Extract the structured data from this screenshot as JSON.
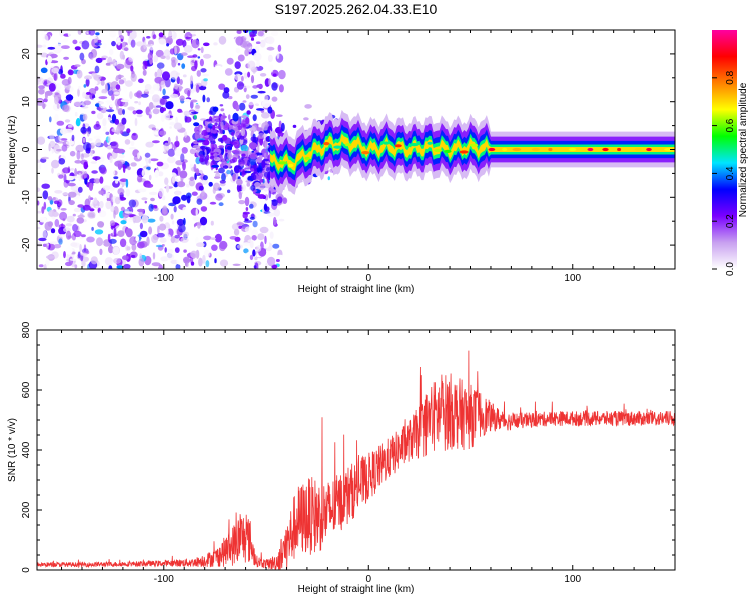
{
  "title": "S197.2025.262.04.33.E10",
  "chart_data": [
    {
      "type": "heatmap",
      "title": "S197.2025.262.04.33.E10",
      "xlabel": "Height of straight line (km)",
      "ylabel": "Frequency (Hz)",
      "xlim": [
        -162,
        150
      ],
      "ylim": [
        -25,
        25
      ],
      "xticks": [
        -100,
        0,
        100
      ],
      "yticks": [
        -20,
        -10,
        0,
        10,
        20
      ],
      "description": "Doppler spectrogram: noisy speckle below about -40 km, converging to a narrow tone near 0 Hz above about 60 km",
      "colorbar": {
        "label": "Normalized spectral amplitude",
        "range": [
          0,
          1
        ],
        "ticks": [
          0.0,
          0.2,
          0.4,
          0.6,
          0.8
        ],
        "colors": [
          "#ffffff",
          "#c8a0f0",
          "#7a00ff",
          "#0000ff",
          "#00e5ff",
          "#00ff00",
          "#ffff00",
          "#ff8000",
          "#ff0000",
          "#ff00a0"
        ]
      },
      "tone_center": [
        {
          "x": -45,
          "y": -2.5
        },
        {
          "x": -38,
          "y": -3
        },
        {
          "x": -30,
          "y": -1
        },
        {
          "x": -20,
          "y": 1
        },
        {
          "x": -10,
          "y": 1.5
        },
        {
          "x": 0,
          "y": 0
        },
        {
          "x": 10,
          "y": 0.5
        },
        {
          "x": 20,
          "y": 0
        },
        {
          "x": 30,
          "y": 0.5
        },
        {
          "x": 40,
          "y": 0
        },
        {
          "x": 50,
          "y": 0.5
        },
        {
          "x": 60,
          "y": 0
        },
        {
          "x": 150,
          "y": 0
        }
      ]
    },
    {
      "type": "line",
      "xlabel": "Height of straight line (km)",
      "ylabel": "SNR (10 * v/v)",
      "xlim": [
        -162,
        150
      ],
      "ylim": [
        0,
        800
      ],
      "xticks": [
        -100,
        0,
        100
      ],
      "yticks": [
        0,
        200,
        400,
        600,
        800
      ],
      "series": [
        {
          "name": "SNR",
          "color": "#ee3333",
          "x": [
            -162,
            -140,
            -120,
            -100,
            -85,
            -75,
            -68,
            -62,
            -58,
            -55,
            -50,
            -45,
            -40,
            -35,
            -30,
            -25,
            -20,
            -15,
            -10,
            -5,
            0,
            5,
            10,
            15,
            20,
            25,
            30,
            35,
            40,
            45,
            50,
            55,
            60,
            65,
            70,
            80,
            90,
            100,
            110,
            120,
            130,
            140,
            150
          ],
          "mean": [
            18,
            18,
            20,
            22,
            25,
            40,
            70,
            110,
            100,
            30,
            20,
            25,
            80,
            160,
            180,
            180,
            190,
            220,
            250,
            280,
            310,
            340,
            370,
            400,
            430,
            460,
            500,
            520,
            530,
            520,
            510,
            520,
            510,
            500,
            495,
            500,
            505,
            505,
            505,
            505,
            505,
            505,
            505
          ],
          "spread": [
            8,
            8,
            8,
            10,
            15,
            30,
            60,
            90,
            80,
            20,
            15,
            30,
            90,
            120,
            130,
            130,
            110,
            100,
            100,
            90,
            80,
            75,
            70,
            70,
            70,
            90,
            120,
            130,
            130,
            120,
            110,
            80,
            50,
            35,
            30,
            25,
            25,
            25,
            25,
            25,
            25,
            25,
            25
          ]
        }
      ]
    }
  ]
}
